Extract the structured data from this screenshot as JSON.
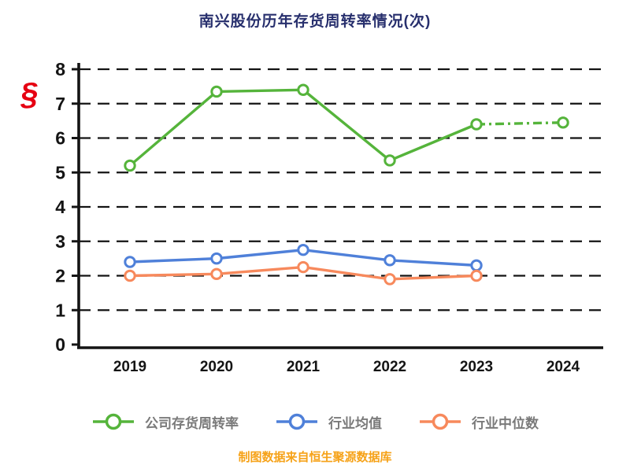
{
  "title": "南兴股份历年存货周转率情况(次)",
  "watermark_glyph": "§",
  "caption": "制图数据来自恒生聚源数据库",
  "colors": {
    "title": "#272f6d",
    "caption": "#f6a218",
    "axis": "#141414",
    "legend_text": "#7a7a7a",
    "watermark": "#e60012",
    "company": "#55b43b",
    "industry_avg": "#4f80d9",
    "industry_median": "#f7895c"
  },
  "chart_data": {
    "type": "line",
    "title": "南兴股份历年存货周转率情况(次)",
    "categories": [
      "2019",
      "2020",
      "2021",
      "2022",
      "2023",
      "2024"
    ],
    "series": [
      {
        "name": "公司存货周转率",
        "color": "#55b43b",
        "values": [
          5.2,
          7.35,
          7.4,
          5.35,
          6.4,
          6.45
        ],
        "dash_from_index": 4
      },
      {
        "name": "行业均值",
        "color": "#4f80d9",
        "values": [
          2.4,
          2.5,
          2.75,
          2.45,
          2.3,
          null
        ]
      },
      {
        "name": "行业中位数",
        "color": "#f7895c",
        "values": [
          2.0,
          2.05,
          2.25,
          1.9,
          2.0,
          null
        ]
      }
    ],
    "xlabel": "",
    "ylabel": "",
    "ylim": [
      0,
      8
    ],
    "yticks": [
      0,
      1,
      2,
      3,
      4,
      5,
      6,
      7,
      8
    ],
    "grid": "dashed-horizontal",
    "legend_position": "bottom"
  },
  "legend": {
    "items": [
      {
        "label": "公司存货周转率",
        "color": "#55b43b"
      },
      {
        "label": "行业均值",
        "color": "#4f80d9"
      },
      {
        "label": "行业中位数",
        "color": "#f7895c"
      }
    ]
  }
}
